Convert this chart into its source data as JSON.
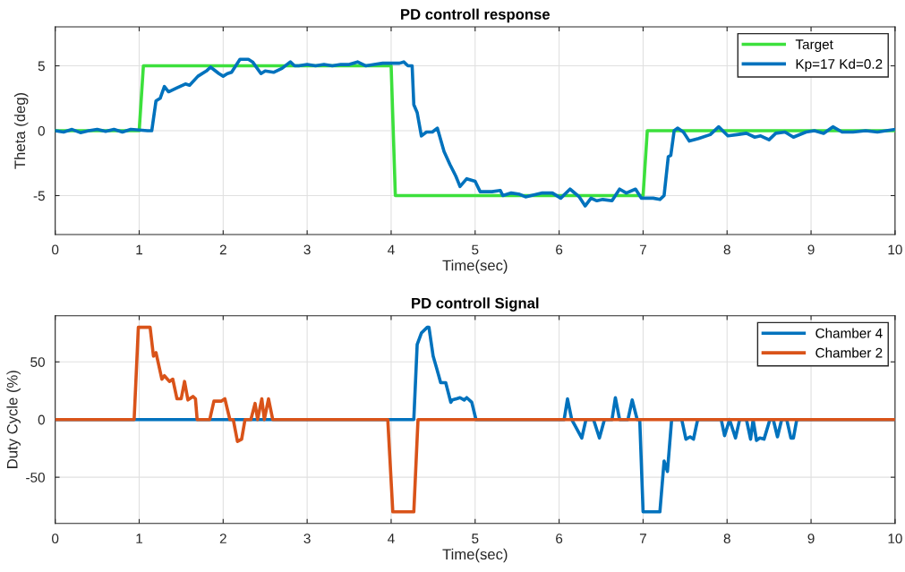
{
  "chart_data": [
    {
      "type": "line",
      "title": "PD controll response",
      "xlabel": "Time(sec)",
      "ylabel": "Theta (deg)",
      "xlim": [
        0,
        10
      ],
      "xticks": [
        0,
        1,
        2,
        3,
        4,
        5,
        6,
        7,
        8,
        9,
        10
      ],
      "ylim": [
        -8,
        8
      ],
      "yticks": [
        -5,
        0,
        5
      ],
      "grid": true,
      "legend": "top right",
      "line_style": "solid",
      "marker": "none",
      "series": [
        {
          "name": "Target",
          "color": "#3ce03c",
          "x": [
            0,
            1.0,
            1.05,
            4.0,
            4.05,
            7.0,
            7.05,
            10
          ],
          "values": [
            0,
            0,
            5,
            5,
            -5,
            -5,
            0,
            0
          ]
        },
        {
          "name": "Kp=17 Kd=0.2",
          "color": "#0072bd",
          "x": [
            0,
            0.1,
            0.2,
            0.3,
            0.4,
            0.5,
            0.6,
            0.7,
            0.8,
            0.9,
            1.0,
            1.1,
            1.15,
            1.2,
            1.25,
            1.3,
            1.35,
            1.45,
            1.55,
            1.6,
            1.7,
            1.8,
            1.85,
            1.95,
            2.0,
            2.05,
            2.1,
            2.2,
            2.3,
            2.35,
            2.45,
            2.5,
            2.6,
            2.7,
            2.8,
            2.85,
            2.9,
            3.0,
            3.1,
            3.2,
            3.3,
            3.4,
            3.5,
            3.6,
            3.7,
            3.8,
            3.9,
            4.0,
            4.1,
            4.15,
            4.2,
            4.25,
            4.27,
            4.31,
            4.36,
            4.42,
            4.49,
            4.55,
            4.63,
            4.7,
            4.77,
            4.82,
            4.9,
            5.0,
            5.06,
            5.2,
            5.3,
            5.33,
            5.43,
            5.53,
            5.6,
            5.8,
            5.92,
            6.02,
            6.13,
            6.24,
            6.31,
            6.38,
            6.45,
            6.52,
            6.63,
            6.72,
            6.8,
            6.91,
            6.98,
            7.12,
            7.2,
            7.25,
            7.3,
            7.33,
            7.37,
            7.41,
            7.48,
            7.55,
            7.66,
            7.8,
            7.9,
            8.01,
            8.12,
            8.23,
            8.33,
            8.4,
            8.5,
            8.58,
            8.69,
            8.79,
            8.94,
            9.04,
            9.15,
            9.26,
            9.37,
            9.5,
            9.65,
            9.79,
            10
          ],
          "values": [
            0,
            -0.1,
            0.1,
            -0.15,
            0,
            0.1,
            -0.05,
            0.1,
            -0.1,
            0.1,
            0.05,
            0,
            0,
            2.3,
            2.5,
            3.4,
            3.0,
            3.3,
            3.6,
            3.5,
            4.2,
            4.6,
            4.9,
            4.4,
            4.2,
            4.4,
            4.5,
            5.5,
            5.5,
            5.3,
            4.4,
            4.6,
            4.5,
            4.8,
            5.3,
            5.0,
            5.0,
            5.1,
            5.0,
            5.1,
            5.0,
            5.1,
            5.1,
            5.3,
            5.0,
            5.1,
            5.2,
            5.2,
            5.2,
            5.3,
            5.0,
            5.0,
            2.0,
            1.4,
            -0.4,
            -0.1,
            -0.1,
            0.2,
            -1.6,
            -2.6,
            -3.5,
            -4.3,
            -3.7,
            -3.9,
            -4.7,
            -4.7,
            -4.6,
            -5.0,
            -4.8,
            -4.9,
            -5.1,
            -4.8,
            -4.8,
            -5.2,
            -4.5,
            -5.1,
            -5.8,
            -5.2,
            -5.4,
            -5.3,
            -5.4,
            -4.5,
            -4.8,
            -4.5,
            -5.2,
            -5.2,
            -5.3,
            -5.0,
            -2.0,
            -1.9,
            0.0,
            0.2,
            -0.1,
            -0.8,
            -0.6,
            -0.3,
            0.3,
            -0.4,
            -0.3,
            -0.2,
            -0.5,
            -0.4,
            -0.7,
            -0.2,
            -0.1,
            -0.5,
            -0.1,
            0.0,
            -0.2,
            0.3,
            -0.1,
            -0.1,
            0.0,
            -0.1,
            0.1
          ]
        }
      ]
    },
    {
      "type": "line",
      "title": "PD controll Signal",
      "xlabel": "Time(sec)",
      "ylabel": "Duty Cycle (%)",
      "xlim": [
        0,
        10
      ],
      "xticks": [
        0,
        1,
        2,
        3,
        4,
        5,
        6,
        7,
        8,
        9,
        10
      ],
      "ylim": [
        -90,
        90
      ],
      "yticks": [
        -50,
        0,
        50
      ],
      "grid": true,
      "legend": "top right",
      "line_style": "solid",
      "marker": "none",
      "series": [
        {
          "name": "Chamber 4",
          "color": "#0072bd",
          "x": [
            0,
            4.27,
            4.31,
            4.36,
            4.43,
            4.45,
            4.5,
            4.54,
            4.59,
            4.65,
            4.71,
            4.73,
            4.82,
            4.87,
            4.9,
            4.96,
            5.01,
            6.06,
            6.1,
            6.15,
            6.27,
            6.32,
            6.41,
            6.48,
            6.54,
            6.63,
            6.67,
            6.72,
            6.82,
            6.87,
            6.93,
            6.96,
            7.0,
            7.2,
            7.25,
            7.29,
            7.34,
            7.46,
            7.51,
            7.56,
            7.6,
            7.65,
            7.93,
            7.97,
            8.03,
            8.1,
            8.15,
            8.23,
            8.28,
            8.31,
            8.35,
            8.39,
            8.44,
            8.51,
            8.55,
            8.6,
            8.65,
            8.71,
            8.76,
            8.79,
            8.83,
            10
          ],
          "values": [
            0,
            0,
            65,
            75,
            80,
            80,
            55,
            45,
            32,
            32,
            15,
            17,
            19,
            17,
            19,
            15,
            0,
            0,
            18,
            0,
            -16,
            0,
            0,
            -16,
            0,
            0,
            19,
            0,
            0,
            17,
            0,
            0,
            -80,
            -80,
            -36,
            -45,
            0,
            0,
            -17,
            -15,
            -17,
            0,
            0,
            -14,
            0,
            -16,
            0,
            0,
            -17,
            0,
            -18,
            -16,
            -17,
            0,
            0,
            -15,
            0,
            0,
            -16,
            -16,
            0,
            0
          ]
        },
        {
          "name": "Chamber 2",
          "color": "#d95319",
          "x": [
            0,
            0.94,
            0.99,
            1.13,
            1.17,
            1.2,
            1.27,
            1.3,
            1.36,
            1.4,
            1.45,
            1.5,
            1.54,
            1.58,
            1.64,
            1.67,
            1.69,
            1.84,
            1.89,
            1.98,
            2.02,
            2.08,
            2.12,
            2.17,
            2.22,
            2.26,
            2.33,
            2.38,
            2.41,
            2.46,
            2.49,
            2.54,
            2.59,
            3.96,
            4.02,
            4.27,
            4.32,
            10
          ],
          "values": [
            0,
            0,
            80,
            80,
            55,
            58,
            35,
            38,
            33,
            35,
            18,
            18,
            33,
            17,
            20,
            18,
            0,
            0,
            16,
            16,
            18,
            0,
            0,
            -19,
            -17,
            0,
            0,
            14,
            0,
            18,
            0,
            18,
            0,
            0,
            -80,
            -80,
            0,
            0
          ]
        }
      ]
    }
  ]
}
